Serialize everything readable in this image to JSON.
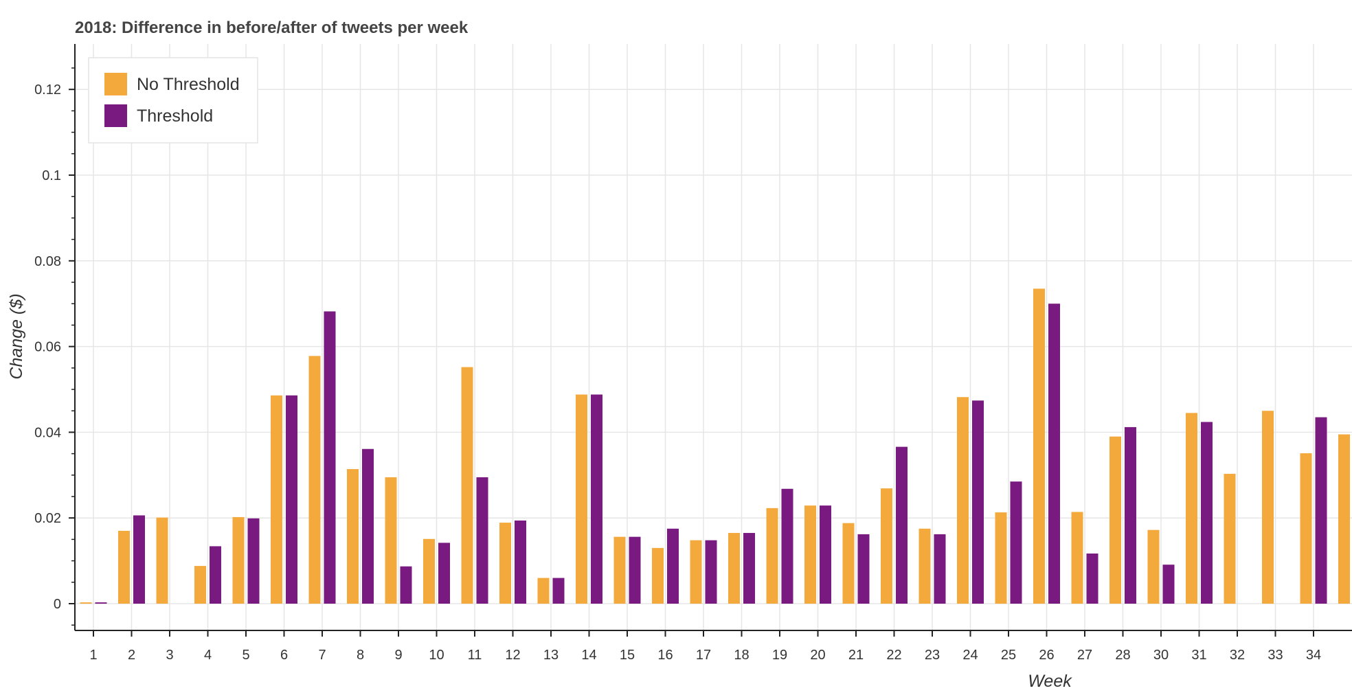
{
  "chart_data": {
    "type": "bar",
    "title": "2018: Difference in before/after of tweets per week",
    "xlabel": "Week",
    "ylabel": "Change ($)",
    "categories": [
      "1",
      "2",
      "3",
      "4",
      "5",
      "6",
      "7",
      "8",
      "9",
      "10",
      "11",
      "12",
      "13",
      "14",
      "15",
      "16",
      "17",
      "18",
      "19",
      "20",
      "21",
      "22",
      "23",
      "24",
      "25",
      "26",
      "27",
      "28",
      "30",
      "31",
      "32",
      "33",
      "34"
    ],
    "series": [
      {
        "name": "No Threshold",
        "color": "#f3a93c",
        "values": [
          0.0003,
          0.017,
          0.0201,
          0.0088,
          0.0202,
          0.0486,
          0.0578,
          0.0314,
          0.0295,
          0.0151,
          0.0552,
          0.0189,
          0.006,
          0.0488,
          0.0156,
          0.013,
          0.0148,
          0.0165,
          0.0223,
          0.0229,
          0.0188,
          0.0269,
          0.0175,
          0.0482,
          0.0213,
          0.0735,
          0.0214,
          0.039,
          0.0172,
          0.0445,
          0.0303,
          0.045,
          0.0351
        ]
      },
      {
        "name": "Threshold",
        "color": "#781a7f",
        "values": [
          0.0003,
          0.0206,
          0,
          0.0134,
          0.0199,
          0.0486,
          0.0682,
          0.0361,
          0.0087,
          0.0142,
          0.0295,
          0.0194,
          0.006,
          0.0488,
          0.0156,
          0.0175,
          0.0148,
          0.0165,
          0.0268,
          0.0229,
          0.0162,
          0.0366,
          0.0162,
          0.0474,
          0.0285,
          0.07,
          0.0117,
          0.0412,
          0.0091,
          0.0424,
          0,
          0,
          0.0435
        ]
      }
    ],
    "partial_next_category": {
      "series": "No Threshold",
      "value": 0.0395
    },
    "yticks": [
      0,
      0.02,
      0.04,
      0.06,
      0.08,
      0.1,
      0.12
    ],
    "ytick_labels": [
      "0",
      "0.02",
      "0.04",
      "0.06",
      "0.08",
      "0.1",
      "0.12"
    ],
    "ylim": [
      -0.0064,
      0.131
    ],
    "grid": true,
    "legend_position": "top-left"
  }
}
